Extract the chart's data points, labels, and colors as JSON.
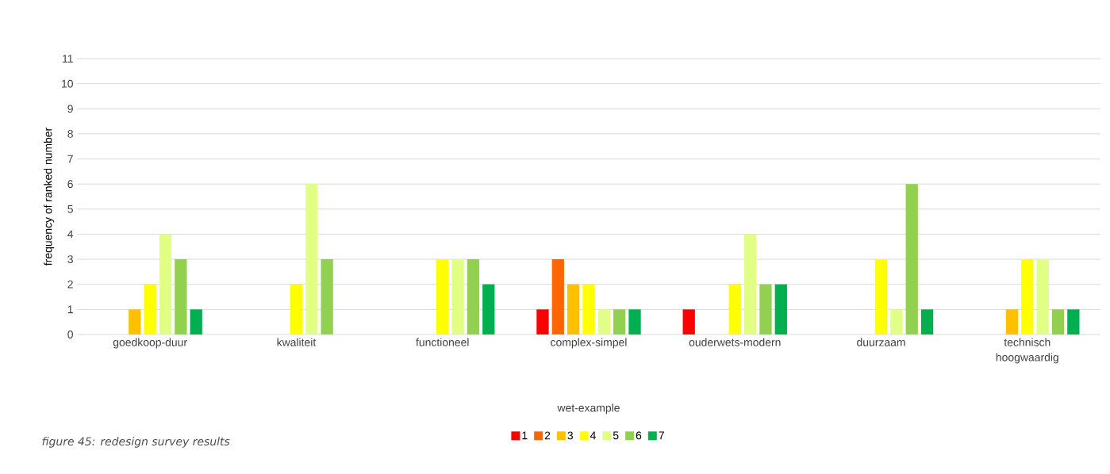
{
  "chart_data": {
    "type": "bar",
    "ylabel": "frequency of ranked number",
    "xlabel": "wet-example",
    "annotations": [
      "figure 45: redesign survey results"
    ],
    "categories": [
      "goedkoop-duur",
      "kwaliteit",
      "functioneel",
      "complex-simpel",
      "ouderwets-modern",
      "duurzaam",
      "technisch hoogwaardig"
    ],
    "series": [
      {
        "name": "1",
        "color": "#ff0000",
        "values": [
          0,
          0,
          0,
          1,
          1,
          0,
          0
        ]
      },
      {
        "name": "2",
        "color": "#ff6600",
        "values": [
          0,
          0,
          0,
          3,
          0,
          0,
          0
        ]
      },
      {
        "name": "3",
        "color": "#ffc000",
        "values": [
          1,
          0,
          0,
          2,
          0,
          0,
          1
        ]
      },
      {
        "name": "4",
        "color": "#ffff00",
        "values": [
          2,
          2,
          3,
          2,
          2,
          3,
          3
        ]
      },
      {
        "name": "5",
        "color": "#e2ff85",
        "values": [
          4,
          6,
          3,
          1,
          4,
          1,
          3
        ]
      },
      {
        "name": "6",
        "color": "#92d050",
        "values": [
          3,
          3,
          3,
          1,
          2,
          6,
          1
        ]
      },
      {
        "name": "7",
        "color": "#00b050",
        "values": [
          1,
          0,
          2,
          1,
          2,
          1,
          1
        ]
      }
    ],
    "ylim": [
      0,
      11
    ],
    "yticks": [
      0,
      1,
      2,
      3,
      4,
      5,
      6,
      7,
      8,
      9,
      10,
      11
    ],
    "grid": "y",
    "legend": "bottom"
  }
}
